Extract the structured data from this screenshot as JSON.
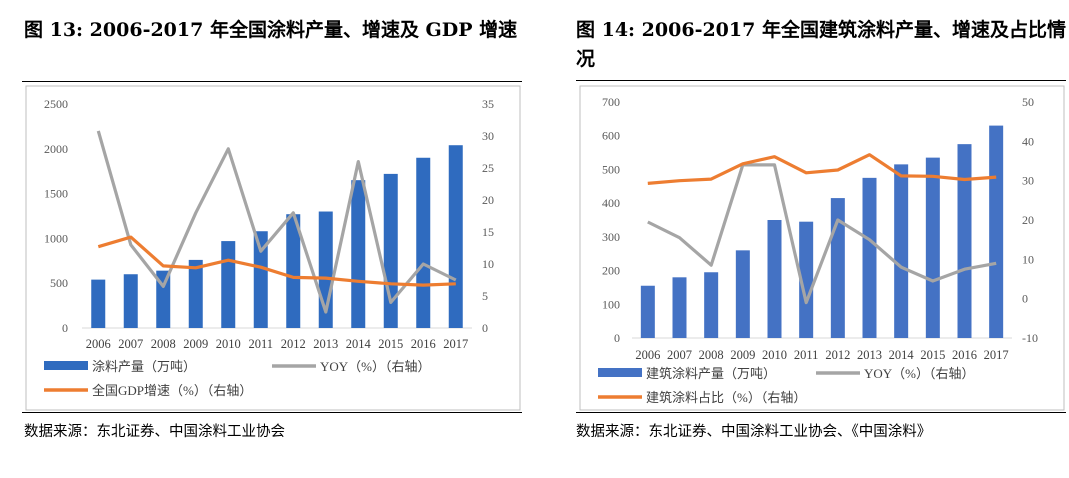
{
  "figures": [
    {
      "title": "图 13:  2006-2017 年全国涂料产量、增速及 GDP 增速",
      "source": "数据来源：东北证券、中国涂料工业协会",
      "legend": [
        "涂料产量（万吨）",
        "YOY（%）（右轴）",
        "全国GDP增速（%）（右轴）"
      ]
    },
    {
      "title": "图 14:  2006-2017 年全国建筑涂料产量、增速及占比情况",
      "source": "数据来源：东北证券、中国涂料工业协会、《中国涂料》",
      "legend": [
        "建筑涂料产量（万吨）",
        "YOY（%）（右轴）",
        "建筑涂料占比（%）（右轴）"
      ]
    }
  ],
  "chart_data": [
    {
      "type": "bar",
      "categories": [
        "2006",
        "2007",
        "2008",
        "2009",
        "2010",
        "2011",
        "2012",
        "2013",
        "2014",
        "2015",
        "2016",
        "2017"
      ],
      "series": [
        {
          "name": "涂料产量（万吨）",
          "type": "bar",
          "axis": "left",
          "values": [
            540,
            600,
            640,
            760,
            970,
            1080,
            1270,
            1300,
            1650,
            1720,
            1900,
            2040
          ]
        },
        {
          "name": "YOY（%）（右轴）",
          "type": "line",
          "axis": "right",
          "values": [
            30.8,
            13.0,
            6.5,
            18.0,
            28.0,
            12.0,
            18.0,
            2.5,
            26.0,
            4.0,
            10.0,
            7.5
          ]
        },
        {
          "name": "全国GDP增速（%）（右轴）",
          "type": "line",
          "axis": "right",
          "values": [
            12.7,
            14.2,
            9.7,
            9.4,
            10.6,
            9.5,
            7.9,
            7.8,
            7.3,
            6.9,
            6.7,
            6.9
          ]
        }
      ],
      "ylim": [
        0,
        2500
      ],
      "yticks": [
        "0",
        "500",
        "1000",
        "1500",
        "2000",
        "2500"
      ],
      "y2lim": [
        0,
        35
      ],
      "y2ticks": [
        "0",
        "5",
        "10",
        "15",
        "20",
        "25",
        "30",
        "35"
      ],
      "colors": {
        "bar": "#2f6bbf",
        "yoy": "#a5a5a5",
        "secondary": "#ed7d31"
      },
      "legend_position": "bottom",
      "grid": false
    },
    {
      "type": "bar",
      "categories": [
        "2006",
        "2007",
        "2008",
        "2009",
        "2010",
        "2011",
        "2012",
        "2013",
        "2014",
        "2015",
        "2016",
        "2017"
      ],
      "series": [
        {
          "name": "建筑涂料产量（万吨）",
          "type": "bar",
          "axis": "left",
          "values": [
            155,
            180,
            195,
            260,
            350,
            345,
            415,
            475,
            515,
            535,
            575,
            630
          ]
        },
        {
          "name": "YOY（%）（右轴）",
          "type": "line",
          "axis": "right",
          "values": [
            19.5,
            15.5,
            8.5,
            34.0,
            34.0,
            -1.0,
            20.0,
            15.0,
            8.0,
            4.5,
            7.5,
            9.0
          ]
        },
        {
          "name": "建筑涂料占比（%）（右轴）",
          "type": "line",
          "axis": "right",
          "values": [
            29.3,
            30.0,
            30.4,
            34.3,
            36.1,
            32.0,
            32.7,
            36.6,
            31.2,
            31.1,
            30.3,
            30.9
          ]
        }
      ],
      "ylim": [
        0,
        700
      ],
      "yticks": [
        "0",
        "100",
        "200",
        "300",
        "400",
        "500",
        "600",
        "700"
      ],
      "y2lim": [
        -10,
        50
      ],
      "y2ticks": [
        "-10",
        "0",
        "10",
        "20",
        "30",
        "40",
        "50"
      ],
      "colors": {
        "bar": "#4472c4",
        "yoy": "#a5a5a5",
        "secondary": "#ed7d31"
      },
      "legend_position": "bottom",
      "grid": false
    }
  ]
}
